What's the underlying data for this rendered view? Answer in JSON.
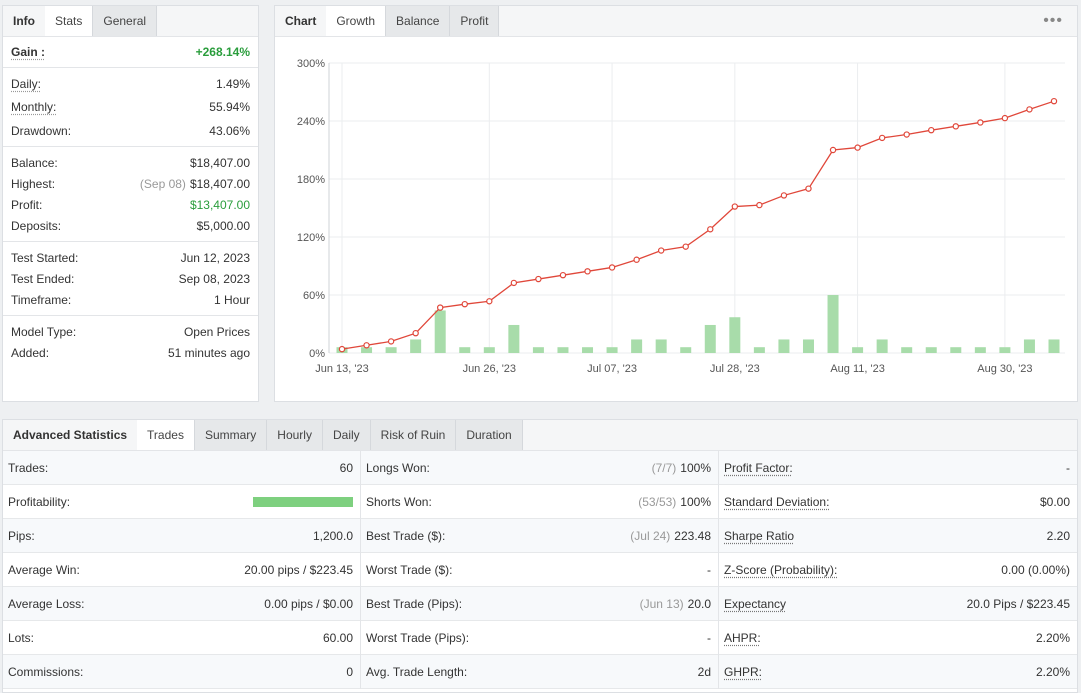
{
  "info_panel": {
    "tabs": [
      "Info",
      "Stats",
      "General"
    ],
    "gain": {
      "label": "Gain :",
      "value": "+268.14%"
    },
    "daily": {
      "label": "Daily:",
      "value": "1.49%"
    },
    "monthly": {
      "label": "Monthly:",
      "value": "55.94%"
    },
    "drawdown": {
      "label": "Drawdown:",
      "value": "43.06%"
    },
    "balance": {
      "label": "Balance:",
      "value": "$18,407.00"
    },
    "highest": {
      "label": "Highest:",
      "date": "(Sep 08)",
      "value": "$18,407.00"
    },
    "profit": {
      "label": "Profit:",
      "value": "$13,407.00"
    },
    "deposits": {
      "label": "Deposits:",
      "value": "$5,000.00"
    },
    "test_started": {
      "label": "Test Started:",
      "value": "Jun 12, 2023"
    },
    "test_ended": {
      "label": "Test Ended:",
      "value": "Sep 08, 2023"
    },
    "timeframe": {
      "label": "Timeframe:",
      "value": "1 Hour"
    },
    "model_type": {
      "label": "Model Type:",
      "value": "Open Prices"
    },
    "added": {
      "label": "Added:",
      "value": "51 minutes ago"
    }
  },
  "chart_panel": {
    "tabs": [
      "Chart",
      "Growth",
      "Balance",
      "Profit"
    ],
    "menu_icon": "more-dots-icon"
  },
  "chart_data": {
    "type": "line",
    "ylim": [
      0,
      300
    ],
    "ytick_labels": [
      "0%",
      "60%",
      "120%",
      "180%",
      "240%",
      "300%"
    ],
    "xtick_labels": [
      "Jun 13, '23",
      "Jun 26, '23",
      "Jul 07, '23",
      "Jul 28, '23",
      "Aug 11, '23",
      "Aug 30, '23"
    ],
    "series": [
      {
        "type": "line",
        "color": "#e0473a",
        "values": [
          4.0,
          8.0,
          12.0,
          20.5,
          47.0,
          50.5,
          53.5,
          72.5,
          76.5,
          80.5,
          84.5,
          88.5,
          96.5,
          106.0,
          110.0,
          128.0,
          151.5,
          153.0,
          163.0,
          170.0,
          210.0,
          212.5,
          222.5,
          226.0,
          230.5,
          234.5,
          238.5,
          243.0,
          252.0,
          260.5
        ]
      },
      {
        "type": "bar",
        "color": "#a8dcaa",
        "values": [
          6,
          6,
          6,
          14,
          44,
          6,
          6,
          29,
          6,
          6,
          6,
          6,
          14,
          14,
          6,
          29,
          37,
          6,
          14,
          14,
          60,
          6,
          14,
          6,
          6,
          6,
          6,
          6,
          14,
          14
        ]
      }
    ],
    "grid": true
  },
  "advanced": {
    "tabs": [
      "Advanced Statistics",
      "Trades",
      "Summary",
      "Hourly",
      "Daily",
      "Risk of Ruin",
      "Duration"
    ],
    "col1": [
      {
        "label": "Trades:",
        "value": "60"
      },
      {
        "label": "Profitability:",
        "value": ""
      },
      {
        "label": "Pips:",
        "value": "1,200.0"
      },
      {
        "label": "Average Win:",
        "value": "20.00 pips / $223.45"
      },
      {
        "label": "Average Loss:",
        "value": "0.00 pips / $0.00"
      },
      {
        "label": "Lots:",
        "value": "60.00"
      },
      {
        "label": "Commissions:",
        "value": "0"
      }
    ],
    "profitability_fraction": 1.0,
    "col2": [
      {
        "label": "Longs Won:",
        "muted": "(7/7)",
        "value": "100%"
      },
      {
        "label": "Shorts Won:",
        "muted": "(53/53)",
        "value": "100%"
      },
      {
        "label": "Best Trade ($):",
        "muted": "(Jul 24)",
        "value": "223.48"
      },
      {
        "label": "Worst Trade ($):",
        "muted": "",
        "value": "-"
      },
      {
        "label": "Best Trade (Pips):",
        "muted": "(Jun 13)",
        "value": "20.0"
      },
      {
        "label": "Worst Trade (Pips):",
        "muted": "",
        "value": "-"
      },
      {
        "label": "Avg. Trade Length:",
        "muted": "",
        "value": "2d"
      }
    ],
    "col3": [
      {
        "label": "Profit Factor:",
        "value": "-"
      },
      {
        "label": "Standard Deviation:",
        "value": "$0.00"
      },
      {
        "label": "Sharpe Ratio",
        "value": "2.20"
      },
      {
        "label": "Z-Score (Probability):",
        "value": "0.00 (0.00%)"
      },
      {
        "label": "Expectancy",
        "value": "20.0 Pips / $223.45"
      },
      {
        "label": "AHPR:",
        "value": "2.20%"
      },
      {
        "label": "GHPR:",
        "value": "2.20%"
      }
    ]
  }
}
